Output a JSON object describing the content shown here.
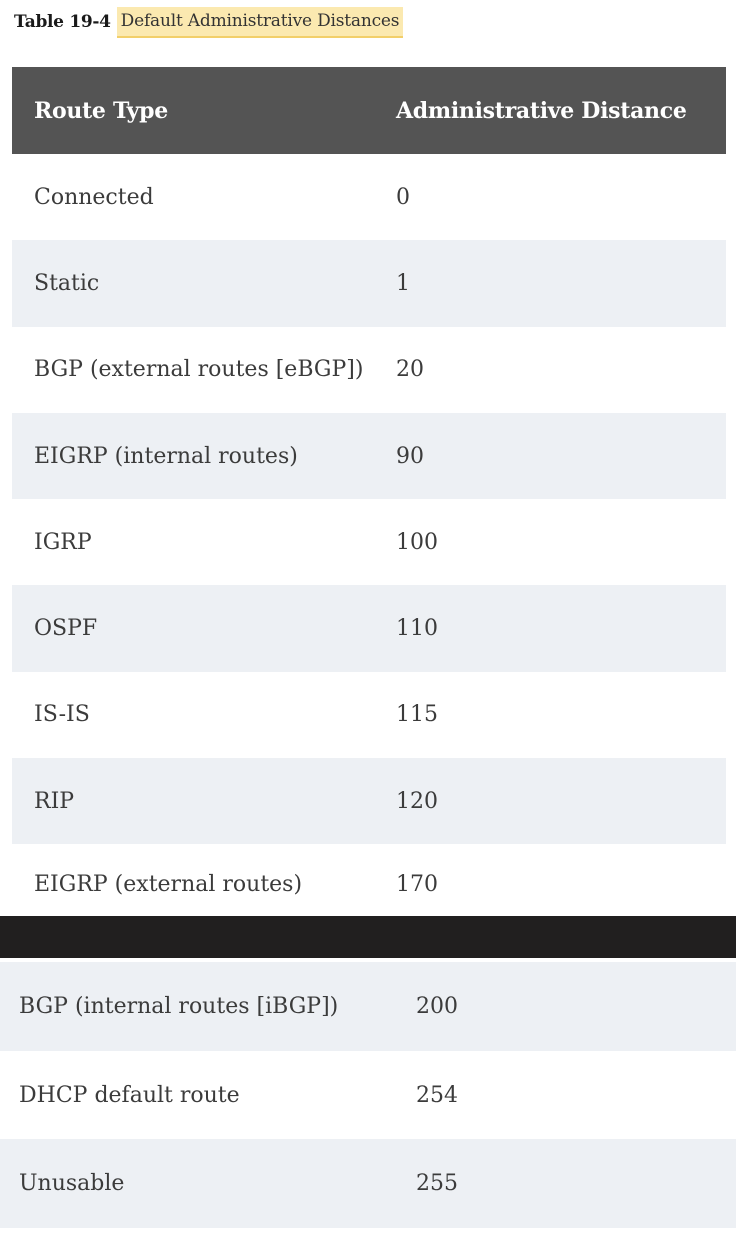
{
  "caption": {
    "number": "Table 19-4",
    "title": "Default Administrative Distances"
  },
  "table": {
    "headers": [
      "Route Type",
      "Administrative Distance"
    ],
    "rows": [
      [
        "Connected",
        "0"
      ],
      [
        "Static",
        "1"
      ],
      [
        "BGP (external routes [eBGP])",
        "20"
      ],
      [
        "EIGRP (internal routes)",
        "90"
      ],
      [
        "IGRP",
        "100"
      ],
      [
        "OSPF",
        "110"
      ],
      [
        "IS-IS",
        "115"
      ],
      [
        "RIP",
        "120"
      ],
      [
        "EIGRP (external routes)",
        "170"
      ]
    ],
    "rows_continued": [
      [
        "BGP (internal routes [iBGP])",
        "200"
      ],
      [
        "DHCP default route",
        "254"
      ],
      [
        "Unusable",
        "255"
      ]
    ]
  },
  "colors": {
    "header_bg": "#545454",
    "stripe_bg": "#edf0f4",
    "caption_highlight": "#fbe9b0",
    "divider_bar": "#211f1f"
  }
}
